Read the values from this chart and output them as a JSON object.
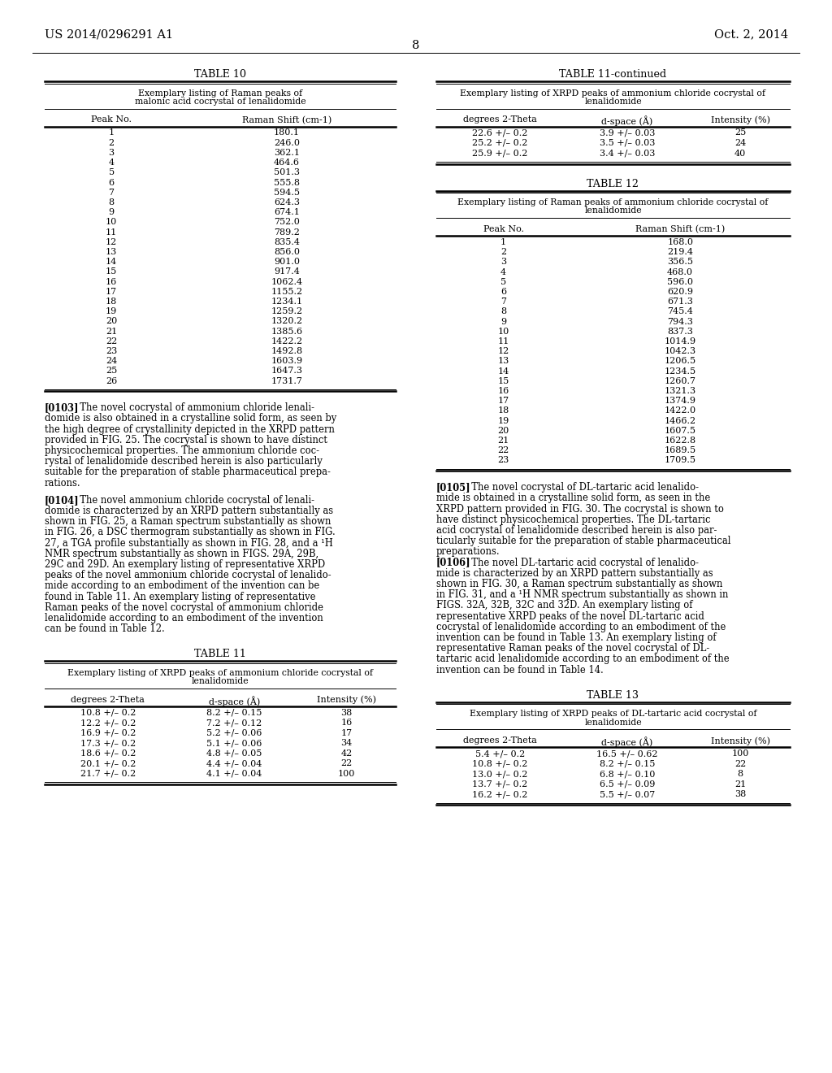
{
  "page_header_left": "US 2014/0296291 A1",
  "page_header_right": "Oct. 2, 2014",
  "page_number": "8",
  "background_color": "#ffffff",
  "text_color": "#000000",
  "table10": {
    "title": "TABLE 10",
    "subtitle": "Exemplary listing of Raman peaks of\nmalonic acid cocrystal of lenalidomide",
    "col_headers": [
      "Peak No.",
      "Raman Shift (cm-1)"
    ],
    "rows": [
      [
        "1",
        "180.1"
      ],
      [
        "2",
        "246.0"
      ],
      [
        "3",
        "362.1"
      ],
      [
        "4",
        "464.6"
      ],
      [
        "5",
        "501.3"
      ],
      [
        "6",
        "555.8"
      ],
      [
        "7",
        "594.5"
      ],
      [
        "8",
        "624.3"
      ],
      [
        "9",
        "674.1"
      ],
      [
        "10",
        "752.0"
      ],
      [
        "11",
        "789.2"
      ],
      [
        "12",
        "835.4"
      ],
      [
        "13",
        "856.0"
      ],
      [
        "14",
        "901.0"
      ],
      [
        "15",
        "917.4"
      ],
      [
        "16",
        "1062.4"
      ],
      [
        "17",
        "1155.2"
      ],
      [
        "18",
        "1234.1"
      ],
      [
        "19",
        "1259.2"
      ],
      [
        "20",
        "1320.2"
      ],
      [
        "21",
        "1385.6"
      ],
      [
        "22",
        "1422.2"
      ],
      [
        "23",
        "1492.8"
      ],
      [
        "24",
        "1603.9"
      ],
      [
        "25",
        "1647.3"
      ],
      [
        "26",
        "1731.7"
      ]
    ]
  },
  "table11cont": {
    "title": "TABLE 11-continued",
    "subtitle": "Exemplary listing of XRPD peaks of ammonium chloride cocrystal of\nlenalidomide",
    "col_headers": [
      "degrees 2-Theta",
      "d-space (Å)",
      "Intensity (%)"
    ],
    "rows": [
      [
        "22.6 +/– 0.2",
        "3.9 +/– 0.03",
        "25"
      ],
      [
        "25.2 +/– 0.2",
        "3.5 +/– 0.03",
        "24"
      ],
      [
        "25.9 +/– 0.2",
        "3.4 +/– 0.03",
        "40"
      ]
    ]
  },
  "table12": {
    "title": "TABLE 12",
    "subtitle": "Exemplary listing of Raman peaks of ammonium chloride cocrystal of\nlenalidomide",
    "col_headers": [
      "Peak No.",
      "Raman Shift (cm-1)"
    ],
    "rows": [
      [
        "1",
        "168.0"
      ],
      [
        "2",
        "219.4"
      ],
      [
        "3",
        "356.5"
      ],
      [
        "4",
        "468.0"
      ],
      [
        "5",
        "596.0"
      ],
      [
        "6",
        "620.9"
      ],
      [
        "7",
        "671.3"
      ],
      [
        "8",
        "745.4"
      ],
      [
        "9",
        "794.3"
      ],
      [
        "10",
        "837.3"
      ],
      [
        "11",
        "1014.9"
      ],
      [
        "12",
        "1042.3"
      ],
      [
        "13",
        "1206.5"
      ],
      [
        "14",
        "1234.5"
      ],
      [
        "15",
        "1260.7"
      ],
      [
        "16",
        "1321.3"
      ],
      [
        "17",
        "1374.9"
      ],
      [
        "18",
        "1422.0"
      ],
      [
        "19",
        "1466.2"
      ],
      [
        "20",
        "1607.5"
      ],
      [
        "21",
        "1622.8"
      ],
      [
        "22",
        "1689.5"
      ],
      [
        "23",
        "1709.5"
      ]
    ]
  },
  "table11": {
    "title": "TABLE 11",
    "subtitle": "Exemplary listing of XRPD peaks of ammonium chloride cocrystal of\nlenalidomide",
    "col_headers": [
      "degrees 2-Theta",
      "d-space (Å)",
      "Intensity (%)"
    ],
    "rows": [
      [
        "10.8 +/– 0.2",
        "8.2 +/– 0.15",
        "38"
      ],
      [
        "12.2 +/– 0.2",
        "7.2 +/– 0.12",
        "16"
      ],
      [
        "16.9 +/– 0.2",
        "5.2 +/– 0.06",
        "17"
      ],
      [
        "17.3 +/– 0.2",
        "5.1 +/– 0.06",
        "34"
      ],
      [
        "18.6 +/– 0.2",
        "4.8 +/– 0.05",
        "42"
      ],
      [
        "20.1 +/– 0.2",
        "4.4 +/– 0.04",
        "22"
      ],
      [
        "21.7 +/– 0.2",
        "4.1 +/– 0.04",
        "100"
      ]
    ]
  },
  "table13": {
    "title": "TABLE 13",
    "subtitle": "Exemplary listing of XRPD peaks of DL-tartaric acid cocrystal of\nlenalidomide",
    "col_headers": [
      "degrees 2-Theta",
      "d-space (Å)",
      "Intensity (%)"
    ],
    "rows": [
      [
        "5.4 +/– 0.2",
        "16.5 +/– 0.62",
        "100"
      ],
      [
        "10.8 +/– 0.2",
        "8.2 +/– 0.15",
        "22"
      ],
      [
        "13.0 +/– 0.2",
        "6.8 +/– 0.10",
        "8"
      ],
      [
        "13.7 +/– 0.2",
        "6.5 +/– 0.09",
        "21"
      ],
      [
        "16.2 +/– 0.2",
        "5.5 +/– 0.07",
        "38"
      ]
    ]
  },
  "para0103_lines": [
    "[0103]",
    "The novel cocrystal of ammonium chloride lenali-",
    "domide is also obtained in a crystalline solid form, as seen by",
    "the high degree of crystallinity depicted in the XRPD pattern",
    "provided in FIG. 25. The cocrystal is shown to have distinct",
    "physicochemical properties. The ammonium chloride coc-",
    "rystal of lenalidomide described herein is also particularly",
    "suitable for the preparation of stable pharmaceutical prepa-",
    "rations."
  ],
  "para0104_lines": [
    "[0104]",
    "The novel ammonium chloride cocrystal of lenali-",
    "domide is characterized by an XRPD pattern substantially as",
    "shown in FIG. 25, a Raman spectrum substantially as shown",
    "in FIG. 26, a DSC thermogram substantially as shown in FIG.",
    "27, a TGA profile substantially as shown in FIG. 28, and a ¹H",
    "NMR spectrum substantially as shown in FIGS. 29A, 29B,",
    "29C and 29D. An exemplary listing of representative XRPD",
    "peaks of the novel ammonium chloride cocrystal of lenalido-",
    "mide according to an embodiment of the invention can be",
    "found in Table 11. An exemplary listing of representative",
    "Raman peaks of the novel cocrystal of ammonium chloride",
    "lenalidomide according to an embodiment of the invention",
    "can be found in Table 12."
  ],
  "para0105_lines": [
    "[0105]",
    "The novel cocrystal of DL-tartaric acid lenalido-",
    "mide is obtained in a crystalline solid form, as seen in the",
    "XRPD pattern provided in FIG. 30. The cocrystal is shown to",
    "have distinct physicochemical properties. The DL-tartaric",
    "acid cocrystal of lenalidomide described herein is also par-",
    "ticularly suitable for the preparation of stable pharmaceutical",
    "preparations."
  ],
  "para0106_lines": [
    "[0106]",
    "The novel DL-tartaric acid cocrystal of lenalido-",
    "mide is characterized by an XRPD pattern substantially as",
    "shown in FIG. 30, a Raman spectrum substantially as shown",
    "in FIG. 31, and a ¹H NMR spectrum substantially as shown in",
    "FIGS. 32A, 32B, 32C and 32D. An exemplary listing of",
    "representative XRPD peaks of the novel DL-tartaric acid",
    "cocrystal of lenalidomide according to an embodiment of the",
    "invention can be found in Table 13. An exemplary listing of",
    "representative Raman peaks of the novel cocrystal of DL-",
    "tartaric acid lenalidomide according to an embodiment of the",
    "invention can be found in Table 14."
  ]
}
